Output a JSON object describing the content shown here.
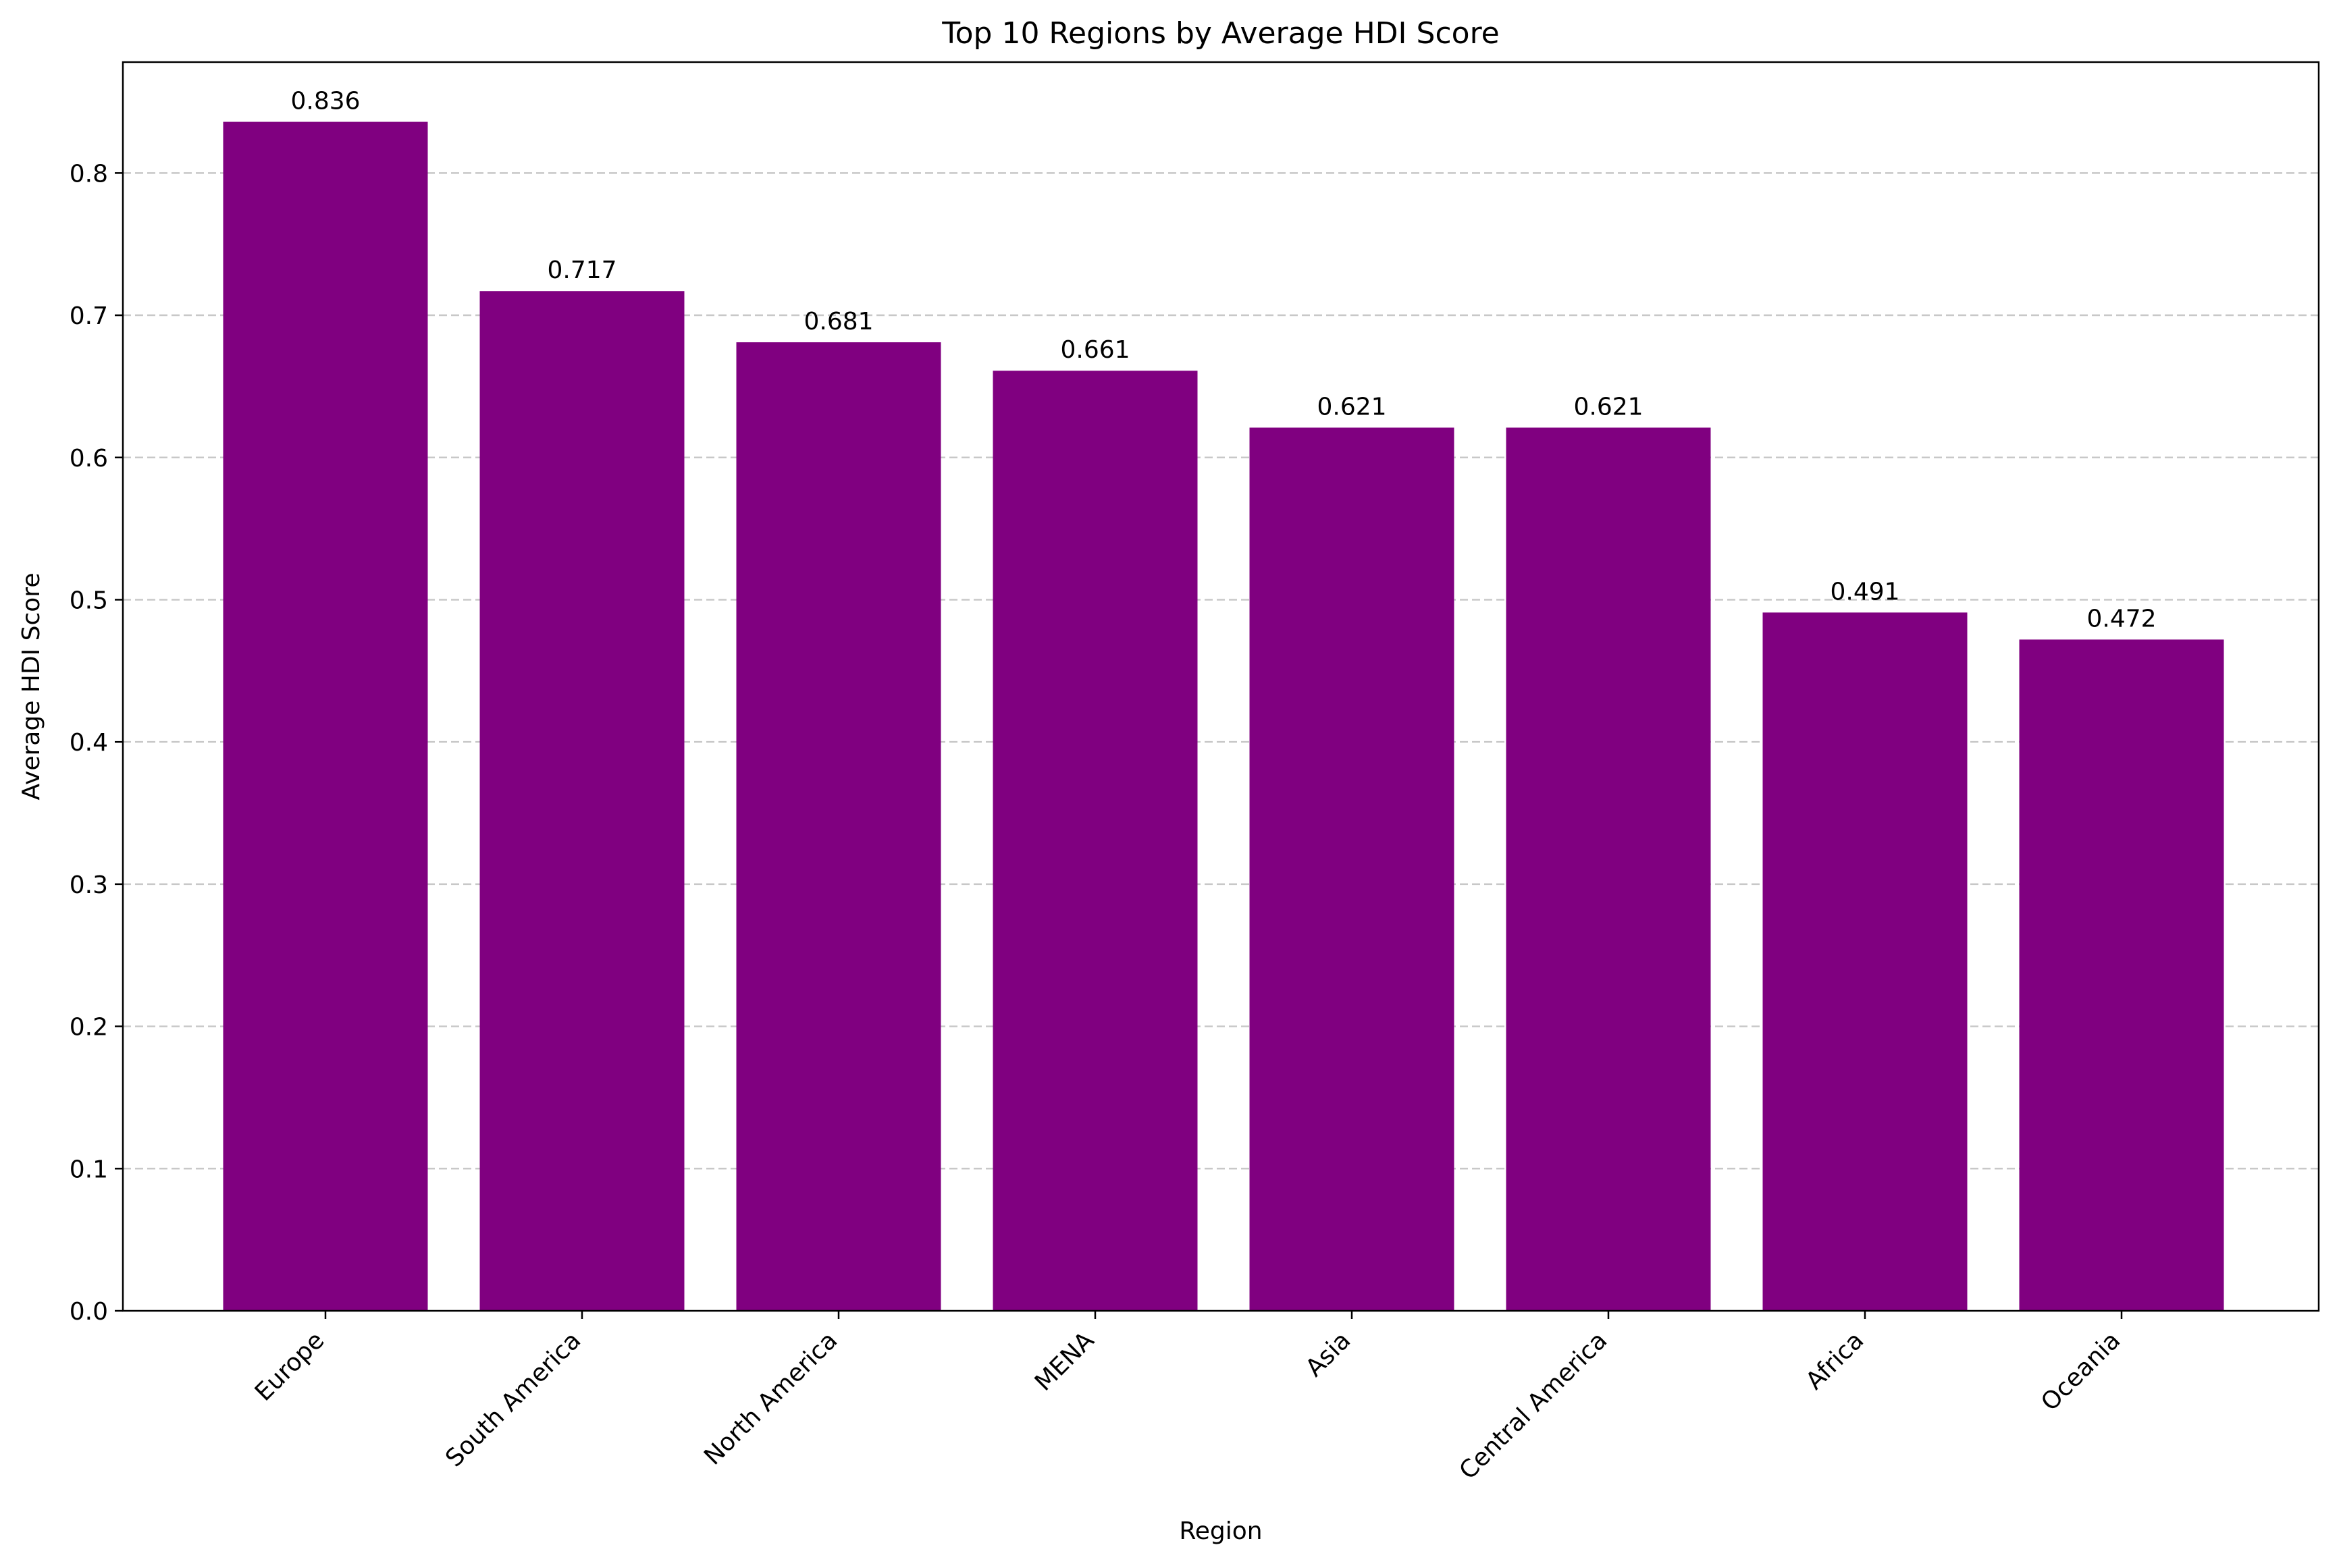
{
  "chart_data": {
    "type": "bar",
    "title": "Top 10 Regions by Average HDI Score",
    "xlabel": "Region",
    "ylabel": "Average HDI Score",
    "categories": [
      "Europe",
      "South America",
      "North America",
      "MENA",
      "Asia",
      "Central America",
      "Africa",
      "Oceania"
    ],
    "values": [
      0.836,
      0.717,
      0.681,
      0.661,
      0.621,
      0.621,
      0.491,
      0.472
    ],
    "data_labels": [
      "0.836",
      "0.717",
      "0.681",
      "0.661",
      "0.621",
      "0.621",
      "0.491",
      "0.472"
    ],
    "ylim": [
      0,
      0.878
    ],
    "yticks": [
      0.0,
      0.1,
      0.2,
      0.3,
      0.4,
      0.5,
      0.6,
      0.7,
      0.8
    ],
    "ytick_labels": [
      "0.0",
      "0.1",
      "0.2",
      "0.3",
      "0.4",
      "0.5",
      "0.6",
      "0.7",
      "0.8"
    ],
    "grid": "y-dashed",
    "bar_color": "#800080",
    "grid_color": "#c8c8c8"
  }
}
